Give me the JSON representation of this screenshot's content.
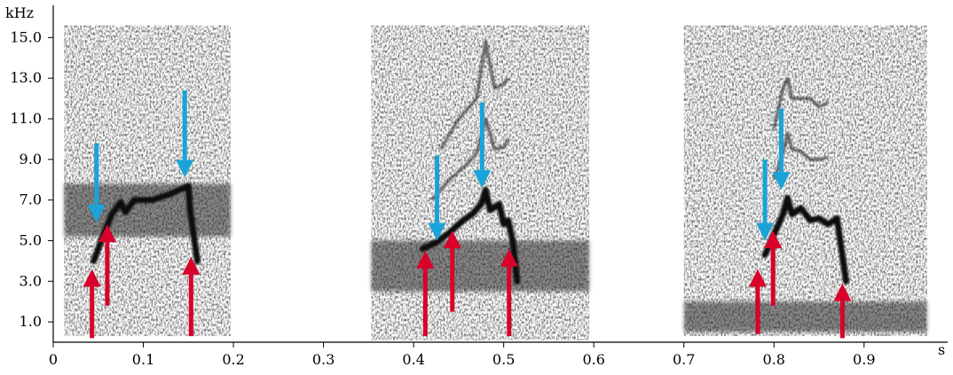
{
  "chart_data": {
    "type": "spectrogram",
    "title": "",
    "x_unit": "s",
    "y_unit": "kHz",
    "xlim": [
      0,
      0.98
    ],
    "ylim": [
      0,
      16.5
    ],
    "x_ticks": [
      "0",
      "0.1",
      "0.2",
      "0.3",
      "0.4",
      "0.5",
      "0.6",
      "0.7",
      "0.8",
      "0.9"
    ],
    "y_ticks": [
      "1.0",
      "3.0",
      "5.0",
      "7.0",
      "9.0",
      "11.0",
      "13.0",
      "15.0"
    ],
    "grid": false,
    "colors": {
      "spectro_dark": "#1a1a1a",
      "noise": "#8a8a8a",
      "blue_arrow": "#1aa3d9",
      "red_arrow": "#d9002a"
    },
    "recordings": [
      {
        "t_start": 0.012,
        "t_end": 0.197,
        "f_low": 0.3,
        "f_high": 15.6,
        "bands": [
          {
            "t": [
              0.012,
              0.197
            ],
            "f": [
              5.2,
              7.8
            ]
          }
        ],
        "contours": [
          [
            [
              0.045,
              4.0
            ],
            [
              0.055,
              5.2
            ],
            [
              0.065,
              6.3
            ],
            [
              0.075,
              6.9
            ],
            [
              0.08,
              6.4
            ],
            [
              0.09,
              7.0
            ],
            [
              0.11,
              7.0
            ],
            [
              0.13,
              7.3
            ],
            [
              0.145,
              7.6
            ],
            [
              0.15,
              7.7
            ],
            [
              0.152,
              6.5
            ],
            [
              0.16,
              4.0
            ]
          ]
        ],
        "harmonics": []
      },
      {
        "t_start": 0.353,
        "t_end": 0.595,
        "f_low": 0.1,
        "f_high": 15.6,
        "bands": [
          {
            "t": [
              0.353,
              0.595
            ],
            "f": [
              2.5,
              5.0
            ]
          }
        ],
        "contours": [
          [
            [
              0.41,
              4.6
            ],
            [
              0.425,
              4.9
            ],
            [
              0.44,
              5.4
            ],
            [
              0.455,
              6.0
            ],
            [
              0.465,
              6.3
            ],
            [
              0.475,
              6.8
            ],
            [
              0.48,
              7.5
            ],
            [
              0.485,
              6.5
            ],
            [
              0.495,
              6.8
            ],
            [
              0.5,
              5.8
            ],
            [
              0.505,
              6.0
            ],
            [
              0.51,
              5.0
            ],
            [
              0.515,
              3.0
            ]
          ]
        ],
        "harmonics": [
          [
            [
              0.42,
              7.0
            ],
            [
              0.44,
              8.0
            ],
            [
              0.46,
              8.8
            ],
            [
              0.47,
              9.3
            ],
            [
              0.48,
              11.0
            ],
            [
              0.49,
              9.5
            ],
            [
              0.5,
              9.6
            ],
            [
              0.505,
              10.0
            ]
          ],
          [
            [
              0.43,
              9.5
            ],
            [
              0.45,
              11.0
            ],
            [
              0.47,
              12.0
            ],
            [
              0.48,
              14.8
            ],
            [
              0.49,
              12.5
            ],
            [
              0.5,
              12.7
            ],
            [
              0.505,
              13.0
            ]
          ]
        ]
      },
      {
        "t_start": 0.7,
        "t_end": 0.97,
        "f_low": 0.3,
        "f_high": 15.6,
        "bands": [
          {
            "t": [
              0.7,
              0.97
            ],
            "f": [
              0.5,
              2.0
            ]
          }
        ],
        "contours": [
          [
            [
              0.79,
              4.3
            ],
            [
              0.8,
              5.3
            ],
            [
              0.81,
              6.3
            ],
            [
              0.815,
              7.1
            ],
            [
              0.82,
              6.3
            ],
            [
              0.83,
              6.6
            ],
            [
              0.84,
              6.0
            ],
            [
              0.85,
              6.1
            ],
            [
              0.86,
              5.8
            ],
            [
              0.87,
              6.1
            ],
            [
              0.88,
              3.0
            ]
          ]
        ],
        "harmonics": [
          [
            [
              0.8,
              8.0
            ],
            [
              0.81,
              9.3
            ],
            [
              0.815,
              10.3
            ],
            [
              0.82,
              9.5
            ],
            [
              0.83,
              9.4
            ],
            [
              0.84,
              9.0
            ],
            [
              0.85,
              9.0
            ],
            [
              0.86,
              9.1
            ]
          ],
          [
            [
              0.8,
              10.5
            ],
            [
              0.81,
              12.5
            ],
            [
              0.815,
              13.0
            ],
            [
              0.82,
              12.0
            ],
            [
              0.84,
              12.0
            ],
            [
              0.85,
              11.6
            ],
            [
              0.86,
              11.8
            ]
          ]
        ]
      }
    ],
    "arrows": [
      {
        "color": "blue",
        "t": 0.048,
        "f_tail": 9.8,
        "f_head": 5.9
      },
      {
        "color": "blue",
        "t": 0.146,
        "f_tail": 12.4,
        "f_head": 8.1
      },
      {
        "color": "blue",
        "t": 0.426,
        "f_tail": 9.2,
        "f_head": 5.0
      },
      {
        "color": "blue",
        "t": 0.476,
        "f_tail": 11.8,
        "f_head": 7.6
      },
      {
        "color": "blue",
        "t": 0.79,
        "f_tail": 9.0,
        "f_head": 5.0
      },
      {
        "color": "blue",
        "t": 0.808,
        "f_tail": 11.5,
        "f_head": 7.5
      },
      {
        "color": "red",
        "t": 0.043,
        "f_tail": 0.2,
        "f_head": 3.6
      },
      {
        "color": "red",
        "t": 0.06,
        "f_tail": 1.8,
        "f_head": 5.8
      },
      {
        "color": "red",
        "t": 0.153,
        "f_tail": 0.3,
        "f_head": 4.2
      },
      {
        "color": "red",
        "t": 0.413,
        "f_tail": 0.3,
        "f_head": 4.5
      },
      {
        "color": "red",
        "t": 0.443,
        "f_tail": 1.5,
        "f_head": 5.5
      },
      {
        "color": "red",
        "t": 0.506,
        "f_tail": 0.3,
        "f_head": 4.6
      },
      {
        "color": "red",
        "t": 0.782,
        "f_tail": 0.4,
        "f_head": 3.6
      },
      {
        "color": "red",
        "t": 0.799,
        "f_tail": 1.8,
        "f_head": 5.5
      },
      {
        "color": "red",
        "t": 0.876,
        "f_tail": 0.2,
        "f_head": 2.9
      }
    ]
  }
}
